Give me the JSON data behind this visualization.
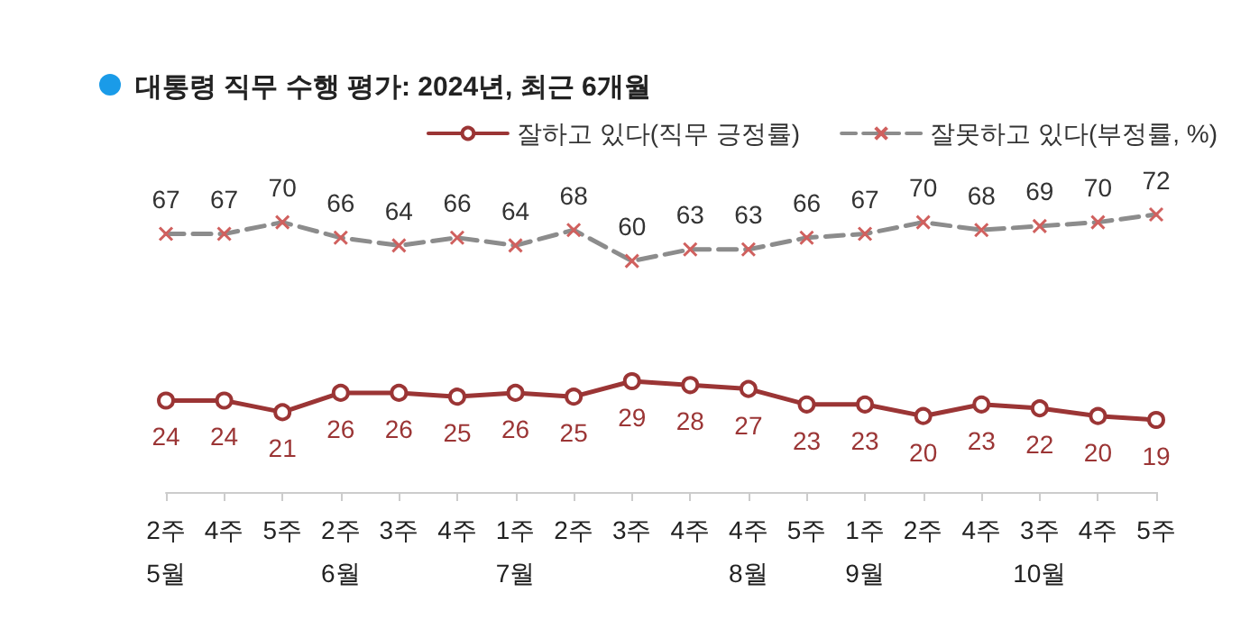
{
  "chart_data": {
    "type": "line",
    "title": "대통령 직무 수행 평가: 2024년, 최근 6개월",
    "categories": [
      "2주\n5월",
      "4주",
      "5주",
      "2주\n6월",
      "3주",
      "4주",
      "1주\n7월",
      "2주",
      "3주",
      "4주",
      "4주\n8월",
      "5주",
      "1주\n9월",
      "2주",
      "4주",
      "3주\n10월",
      "4주",
      "5주"
    ],
    "series": [
      {
        "name": "잘하고 있다(직무 긍정률)",
        "color": "#9b3535",
        "marker": "circle",
        "line_style": "solid",
        "values": [
          24,
          24,
          21,
          26,
          26,
          25,
          26,
          25,
          29,
          28,
          27,
          23,
          23,
          20,
          23,
          22,
          20,
          19
        ]
      },
      {
        "name": "잘못하고 있다(부정률, %)",
        "color": "#8c8c8c",
        "marker": "cross",
        "line_style": "dashed",
        "values": [
          67,
          67,
          70,
          66,
          64,
          66,
          64,
          68,
          60,
          63,
          63,
          66,
          67,
          70,
          68,
          69,
          70,
          72
        ]
      }
    ],
    "data_labels": true,
    "legend": "top right",
    "grid": false,
    "tick_labels": "x"
  }
}
